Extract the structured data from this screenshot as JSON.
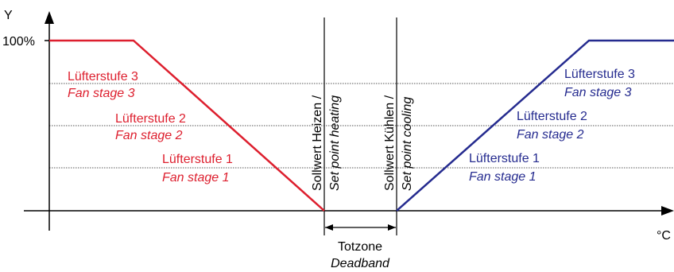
{
  "axes": {
    "y_label": "Y",
    "y_tick_100": "100%",
    "x_unit": "°C"
  },
  "heating": {
    "color": "#dd1f2e",
    "stages": [
      {
        "de": "Lüfterstufe 3",
        "en": "Fan stage 3"
      },
      {
        "de": "Lüfterstufe 2",
        "en": "Fan stage 2"
      },
      {
        "de": "Lüfterstufe 1",
        "en": "Fan stage 1"
      }
    ],
    "setpoint_de": "Sollwert Heizen /",
    "setpoint_en": "Set point heating"
  },
  "cooling": {
    "color": "#252b8f",
    "stages": [
      {
        "de": "Lüfterstufe 3",
        "en": "Fan stage 3"
      },
      {
        "de": "Lüfterstufe 2",
        "en": "Fan stage 2"
      },
      {
        "de": "Lüfterstufe 1",
        "en": "Fan stage 1"
      }
    ],
    "setpoint_de": "Sollwert Kühlen /",
    "setpoint_en": "Set point cooling"
  },
  "deadband": {
    "de": "Totzone",
    "en": "Deadband"
  }
}
